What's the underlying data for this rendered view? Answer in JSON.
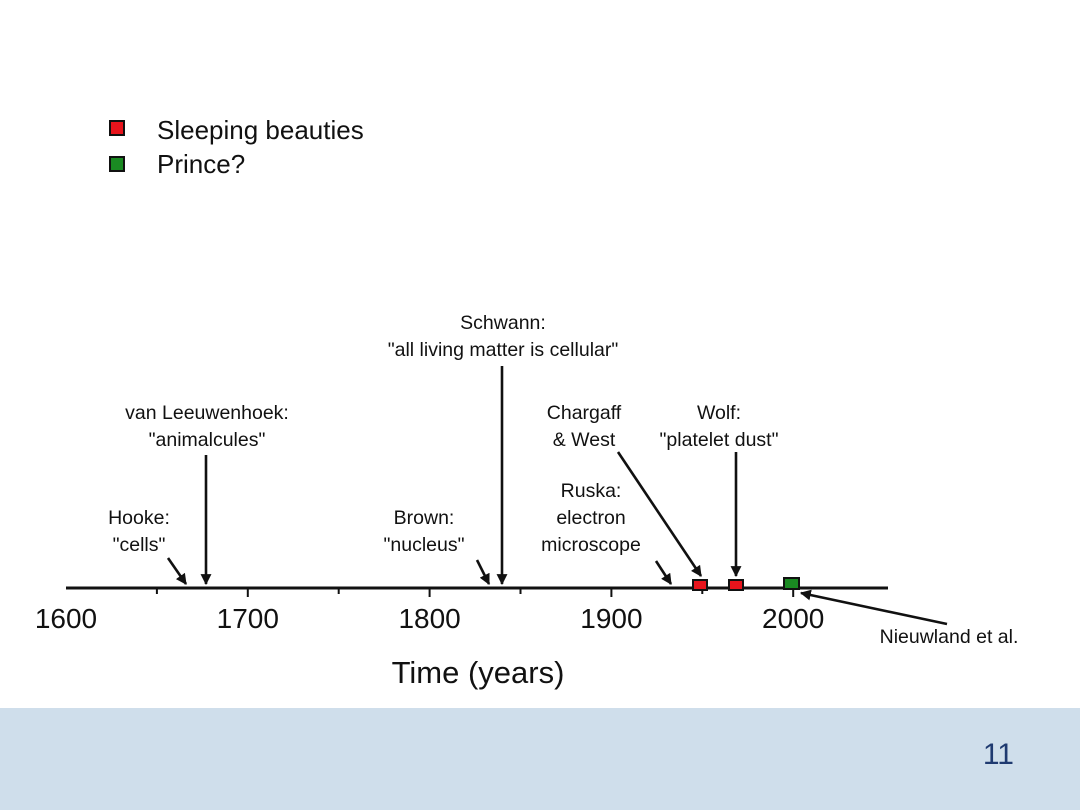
{
  "legend": [
    {
      "label": "Sleeping beauties",
      "color": "#e8141c"
    },
    {
      "label": "Prince?",
      "color": "#1a8a22"
    }
  ],
  "axis": {
    "title": "Time (years)",
    "range": [
      1600,
      2050
    ],
    "ticks": [
      "1600",
      "1700",
      "1800",
      "1900",
      "2000"
    ]
  },
  "events": [
    {
      "id": "hooke",
      "year": 1665,
      "lines": [
        "Hooke:",
        "\"cells\""
      ],
      "arrow": "short"
    },
    {
      "id": "leeuwenhoek",
      "year": 1676,
      "lines": [
        "van Leeuwenhoek:",
        "\"animalcules\""
      ],
      "arrow": "long"
    },
    {
      "id": "brown",
      "year": 1831,
      "lines": [
        "Brown:",
        "\"nucleus\""
      ],
      "arrow": "short"
    },
    {
      "id": "schwann",
      "year": 1839,
      "lines": [
        "Schwann:",
        "\"all living matter is cellular\""
      ],
      "arrow": "long"
    },
    {
      "id": "ruska",
      "year": 1931,
      "lines": [
        "Ruska:",
        "electron",
        "microscope"
      ],
      "arrow": "short"
    },
    {
      "id": "chargaff",
      "year": 1946,
      "lines": [
        "Chargaff",
        "& West"
      ],
      "arrow": "diagonal",
      "marker": "sleeping"
    },
    {
      "id": "wolf",
      "year": 1967,
      "lines": [
        "Wolf:",
        "\"platelet dust\""
      ],
      "arrow": "long",
      "marker": "sleeping"
    },
    {
      "id": "nieuwland",
      "year": 1996,
      "lines": [
        "Nieuwland et al."
      ],
      "arrow": "from-right",
      "marker": "prince"
    }
  ],
  "page_number": "11"
}
